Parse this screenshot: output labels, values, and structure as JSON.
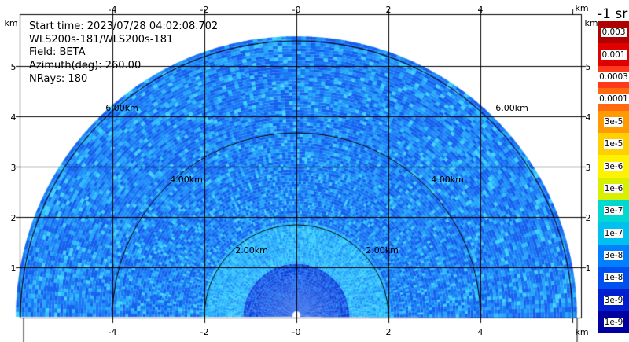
{
  "info": {
    "start_time": "Start time: 2023/07/28 04:02:08.702",
    "instrument": "WLS200s-181/WLS200s-181",
    "field": "Field: BETA",
    "azimuth": "Azimuth(deg): 260.00",
    "nrays": "NRays: 180"
  },
  "axes": {
    "x_ticks": [
      "-4",
      "-2",
      "-0",
      "2",
      "4"
    ],
    "y_ticks": [
      "1",
      "2",
      "3",
      "4",
      "5"
    ],
    "unit": "km"
  },
  "rings": [
    "2.00km",
    "4.00km",
    "6.00km"
  ],
  "legend": {
    "title": "-1 sr",
    "labels": [
      "0.003",
      "0.001",
      "0.0003",
      "0.0001",
      "3e-5",
      "1e-5",
      "3e-6",
      "1e-6",
      "3e-7",
      "1e-7",
      "3e-8",
      "1e-8",
      "3e-9",
      "1e-9"
    ],
    "colors": [
      "#b00000",
      "#e00000",
      "#ff3a1a",
      "#ff6a10",
      "#ff9a00",
      "#ffd000",
      "#fff200",
      "#d8f000",
      "#00d8d0",
      "#00c0f0",
      "#0080ff",
      "#0050f0",
      "#0020d0",
      "#0000a0"
    ]
  }
}
